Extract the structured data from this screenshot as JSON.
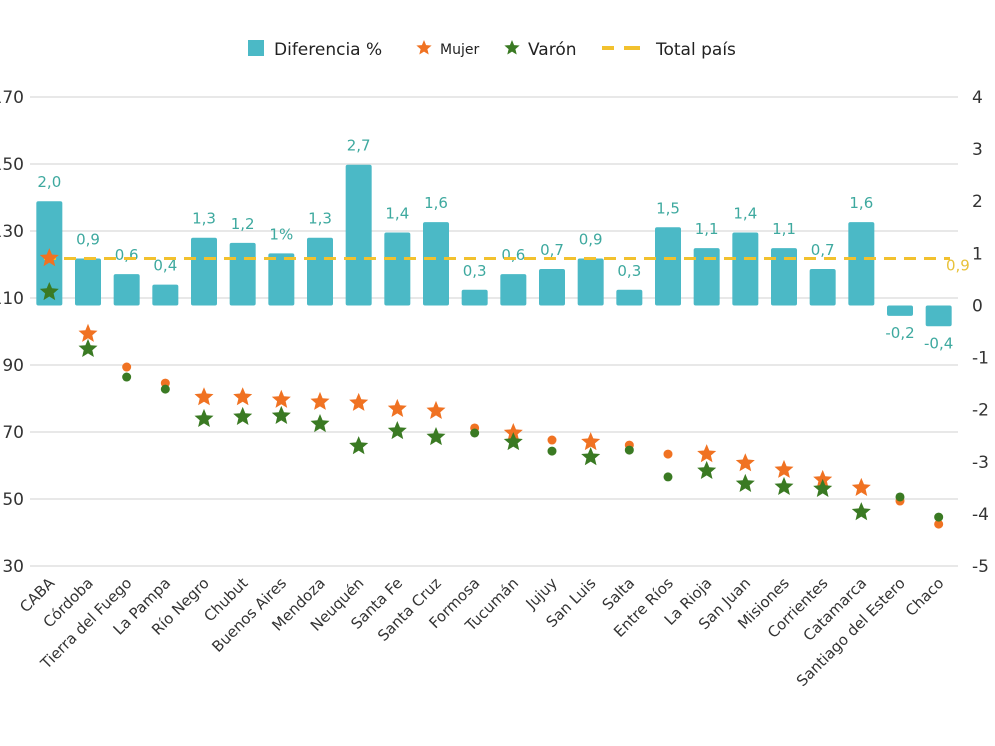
{
  "chart_data": {
    "type": "bar",
    "title": "",
    "xlabel": "",
    "ylabel_left": "",
    "ylabel_right": "",
    "categories": [
      "CABA",
      "Córdoba",
      "Tierra del Fuego",
      "La Pampa",
      "Río Negro",
      "Chubut",
      "Buenos Aires",
      "Mendoza",
      "Neuquén",
      "Santa Fe",
      "Santa Cruz",
      "Formosa",
      "Tucumán",
      "Jujuy",
      "San Luis",
      "Salta",
      "Entre Ríos",
      "La Rioja",
      "San Juan",
      "Misiones",
      "Corrientes",
      "Catamarca",
      "Santiago del Estero",
      "Chaco"
    ],
    "left_axis": {
      "ylim": [
        30,
        170
      ],
      "ticks": [
        170,
        150,
        130,
        110,
        90,
        70,
        50,
        30
      ],
      "tick_labels": [
        "170",
        "150",
        "130",
        "110",
        "90",
        "70",
        "50",
        "30"
      ]
    },
    "right_axis": {
      "ylim": [
        -5,
        4
      ],
      "ticks": [
        4,
        3,
        2,
        1,
        0,
        -1,
        -2,
        -3,
        -4,
        -5
      ],
      "tick_labels": [
        "4",
        "3",
        "2",
        "1",
        "0",
        "-1",
        "-2",
        "-3",
        "-4",
        "-5"
      ]
    },
    "grid": true,
    "legend_position": "top-center",
    "legend": [
      {
        "name": "Diferencia %",
        "kind": "bar",
        "color": "#4bb9c6"
      },
      {
        "name": "Mujer",
        "kind": "star",
        "color": "#f07222"
      },
      {
        "name": "Varón",
        "kind": "star",
        "color": "#3a7a23"
      },
      {
        "name": "Total país",
        "kind": "dashed-line",
        "color": "#f2c12e"
      }
    ],
    "series": [
      {
        "name": "Diferencia %",
        "axis": "right",
        "type": "bar",
        "color": "#4bb9c6",
        "values": [
          2.0,
          0.9,
          0.6,
          0.4,
          1.3,
          1.2,
          1.0,
          1.3,
          2.7,
          1.4,
          1.6,
          0.3,
          0.6,
          0.7,
          0.9,
          0.3,
          1.5,
          1.1,
          1.4,
          1.1,
          0.7,
          1.6,
          -0.2,
          -0.4
        ],
        "labels": [
          "2,0",
          "0,9",
          "0,6",
          "0,4",
          "1,3",
          "1,2",
          "1%",
          "1,3",
          "2,7",
          "1,4",
          "1,6",
          "0,3",
          "0,6",
          "0,7",
          "0,9",
          "0,3",
          "1,5",
          "1,1",
          "1,4",
          "1,1",
          "0,7",
          "1,6",
          "-0,2",
          "-0,4"
        ]
      },
      {
        "name": "Mujer",
        "axis": "left",
        "type": "scatter",
        "color": "#f07222",
        "values": [
          121.9,
          99.3,
          89.4,
          84.6,
          80.4,
          80.4,
          79.6,
          79.0,
          78.7,
          76.9,
          76.3,
          71.2,
          69.7,
          67.6,
          67.0,
          66.1,
          63.4,
          63.4,
          60.7,
          58.7,
          55.7,
          53.3,
          49.4,
          42.5
        ],
        "markers": [
          "star",
          "star",
          "circle",
          "circle",
          "star",
          "star",
          "star",
          "star",
          "star",
          "star",
          "star",
          "circle",
          "star",
          "circle",
          "star",
          "circle",
          "circle",
          "star",
          "star",
          "star",
          "star",
          "star",
          "circle",
          "circle"
        ]
      },
      {
        "name": "Varón",
        "axis": "left",
        "type": "scatter",
        "color": "#3a7a23",
        "values": [
          111.8,
          94.8,
          86.4,
          82.8,
          73.9,
          74.5,
          74.8,
          72.4,
          65.8,
          70.3,
          68.5,
          69.7,
          67.0,
          64.3,
          62.5,
          64.6,
          56.6,
          58.4,
          54.5,
          53.6,
          53.0,
          46.1,
          50.6,
          44.6
        ],
        "markers": [
          "star",
          "star",
          "circle",
          "circle",
          "star",
          "star",
          "star",
          "star",
          "star",
          "star",
          "star",
          "circle",
          "star",
          "circle",
          "star",
          "circle",
          "circle",
          "star",
          "star",
          "star",
          "star",
          "star",
          "circle",
          "circle"
        ]
      },
      {
        "name": "Total país",
        "axis": "right",
        "type": "line",
        "style": "dashed",
        "color": "#f2c12e",
        "value": 0.9,
        "label": "0,9"
      }
    ]
  }
}
